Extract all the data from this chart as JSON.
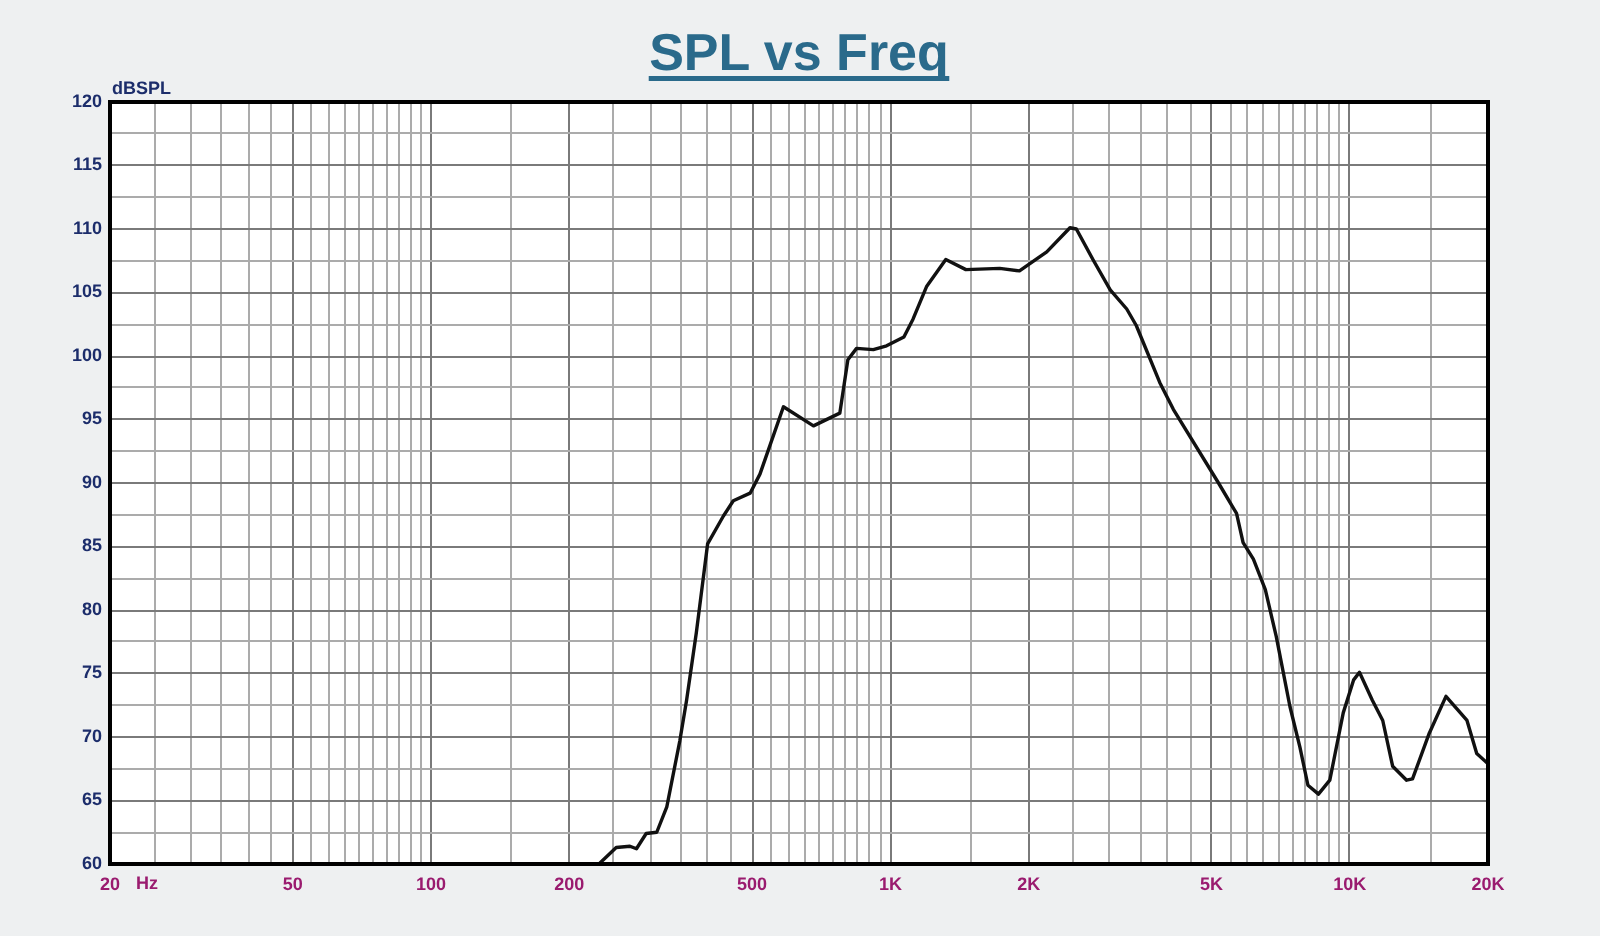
{
  "chart_data": {
    "type": "line",
    "title": "SPL vs Freq",
    "xlabel": "Hz",
    "ylabel": "dBSPL",
    "x": [
      232,
      253,
      271,
      280,
      294,
      310,
      326,
      348,
      360,
      378,
      400,
      433,
      455,
      495,
      520,
      585,
      680,
      776,
      808,
      844,
      918,
      981,
      1070,
      1120,
      1200,
      1320,
      1460,
      1730,
      1910,
      2190,
      2460,
      2540,
      2760,
      3010,
      3270,
      3430,
      3860,
      4130,
      5180,
      5670,
      5860,
      6170,
      6550,
      6920,
      7410,
      7790,
      8110,
      8550,
      9050,
      9680,
      10200,
      10500,
      11200,
      11800,
      12400,
      13300,
      13700,
      14900,
      16200,
      18000,
      18900,
      20000
    ],
    "series": [
      {
        "color": "#111111",
        "values": [
          60.0,
          61.3,
          61.4,
          61.2,
          62.4,
          62.5,
          64.5,
          69.7,
          72.9,
          78.2,
          85.2,
          87.4,
          88.6,
          89.2,
          90.7,
          96.0,
          94.5,
          95.5,
          99.7,
          100.6,
          100.5,
          100.8,
          101.5,
          102.9,
          105.5,
          107.6,
          106.8,
          106.9,
          106.7,
          108.2,
          110.1,
          110.0,
          107.6,
          105.2,
          103.7,
          102.4,
          97.9,
          95.8,
          90.0,
          87.6,
          85.3,
          84.0,
          81.6,
          77.9,
          72.4,
          69.2,
          66.2,
          65.5,
          66.6,
          71.9,
          74.5,
          75.1,
          72.9,
          71.3,
          67.7,
          66.6,
          66.7,
          70.3,
          73.2,
          71.3,
          68.7,
          67.9
        ]
      }
    ],
    "xlim": [
      20,
      20000
    ],
    "xticks": [
      20,
      {
        "value": 25,
        "label": null
      },
      {
        "value": 30,
        "label": null
      },
      {
        "value": 35,
        "label": null
      },
      {
        "value": 40,
        "label": null
      },
      {
        "value": 45,
        "label": null
      },
      50,
      {
        "value": 55,
        "label": null
      },
      {
        "value": 60,
        "label": null
      },
      {
        "value": 65,
        "label": null
      },
      {
        "value": 70,
        "label": null
      },
      {
        "value": 75,
        "label": null
      },
      {
        "value": 80,
        "label": null
      },
      {
        "value": 85,
        "label": null
      },
      {
        "value": 90,
        "label": null
      },
      {
        "value": 95,
        "label": null
      },
      100,
      {
        "value": 150,
        "label": null
      },
      200,
      {
        "value": 250,
        "label": null
      },
      {
        "value": 300,
        "label": null
      },
      {
        "value": 350,
        "label": null
      },
      {
        "value": 400,
        "label": null
      },
      {
        "value": 450,
        "label": null
      },
      500,
      {
        "value": 550,
        "label": null
      },
      {
        "value": 600,
        "label": null
      },
      {
        "value": 650,
        "label": null
      },
      {
        "value": 700,
        "label": null
      },
      {
        "value": 750,
        "label": null
      },
      {
        "value": 800,
        "label": null
      },
      {
        "value": 850,
        "label": null
      },
      {
        "value": 900,
        "label": null
      },
      {
        "value": 950,
        "label": null
      },
      {
        "value": 1000,
        "label": "1K"
      },
      {
        "value": 1500,
        "label": null
      },
      {
        "value": 2000,
        "label": "2K"
      },
      {
        "value": 2500,
        "label": null
      },
      {
        "value": 3000,
        "label": null
      },
      {
        "value": 3500,
        "label": null
      },
      {
        "value": 4000,
        "label": null
      },
      {
        "value": 4500,
        "label": null
      },
      {
        "value": 5000,
        "label": "5K"
      },
      {
        "value": 5500,
        "label": null
      },
      {
        "value": 6000,
        "label": null
      },
      {
        "value": 6500,
        "label": null
      },
      {
        "value": 7000,
        "label": null
      },
      {
        "value": 7500,
        "label": null
      },
      {
        "value": 8000,
        "label": null
      },
      {
        "value": 8500,
        "label": null
      },
      {
        "value": 9000,
        "label": null
      },
      {
        "value": 9500,
        "label": null
      },
      {
        "value": 10000,
        "label": "10K"
      },
      {
        "value": 15000,
        "label": null
      },
      {
        "value": 20000,
        "label": "20K"
      }
    ],
    "ylim": [
      60,
      120
    ],
    "yticks": [
      60,
      {
        "value": 62.5,
        "label": null
      },
      65,
      {
        "value": 67.5,
        "label": null
      },
      70,
      {
        "value": 72.5,
        "label": null
      },
      75,
      {
        "value": 77.5,
        "label": null
      },
      80,
      {
        "value": 82.5,
        "label": null
      },
      85,
      {
        "value": 87.5,
        "label": null
      },
      90,
      {
        "value": 92.5,
        "label": null
      },
      95,
      {
        "value": 97.5,
        "label": null
      },
      100,
      {
        "value": 102.5,
        "label": null
      },
      105,
      {
        "value": 107.5,
        "label": null
      },
      110,
      {
        "value": 112.5,
        "label": null
      },
      115,
      {
        "value": 117.5,
        "label": null
      },
      120
    ],
    "log": "x",
    "grid": true,
    "marker": "none"
  }
}
